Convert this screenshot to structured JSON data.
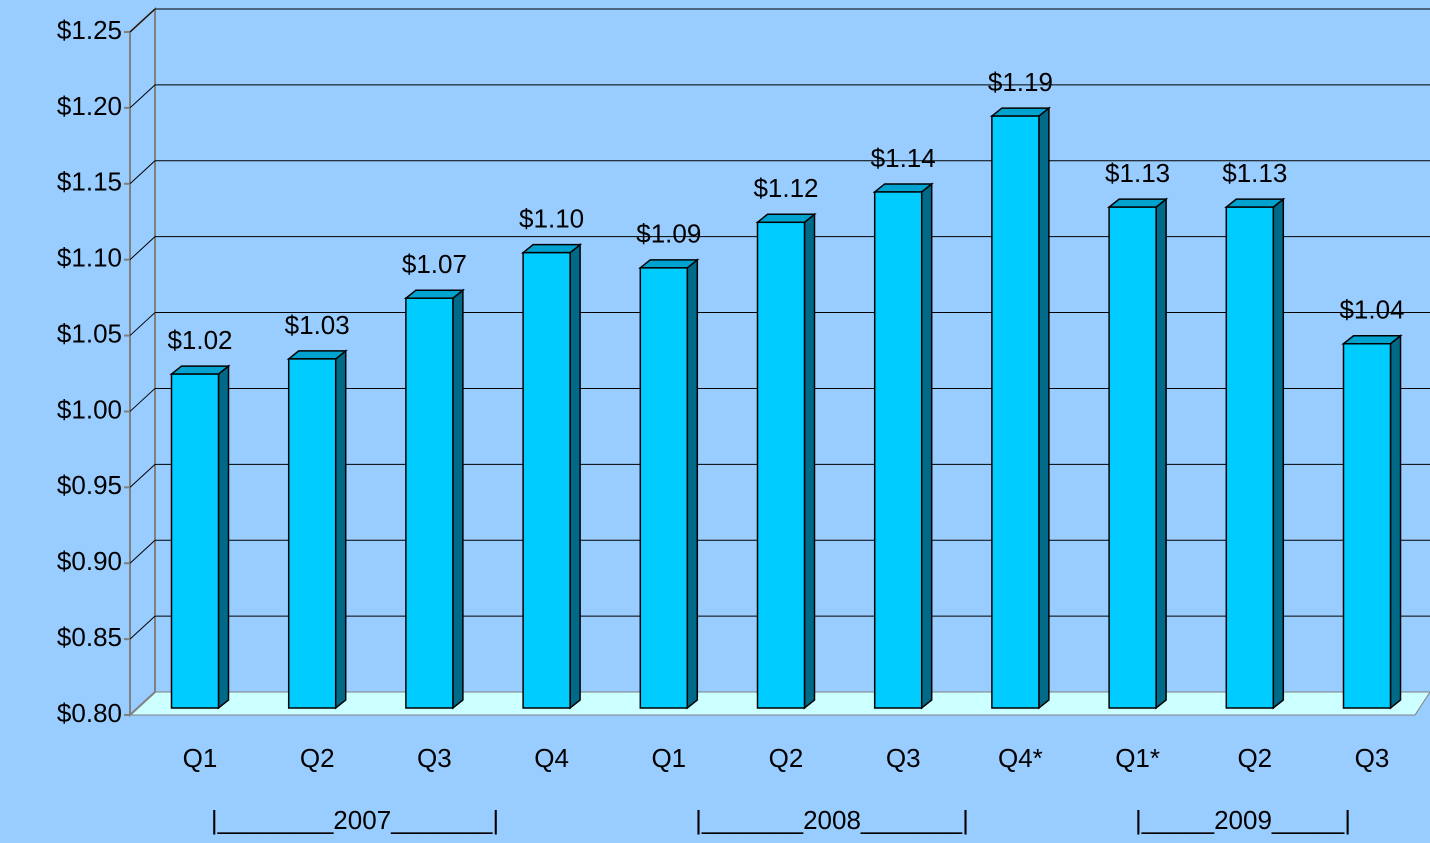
{
  "chart_data": {
    "type": "bar3d",
    "categories": [
      "Q1",
      "Q2",
      "Q3",
      "Q4",
      "Q1",
      "Q2",
      "Q3",
      "Q4*",
      "Q1*",
      "Q2",
      "Q3"
    ],
    "values": [
      1.02,
      1.03,
      1.07,
      1.1,
      1.09,
      1.12,
      1.14,
      1.19,
      1.13,
      1.13,
      1.04
    ],
    "value_labels": [
      "$1.02",
      "$1.03",
      "$1.07",
      "$1.10",
      "$1.09",
      "$1.12",
      "$1.14",
      "$1.19",
      "$1.13",
      "$1.13",
      "$1.04"
    ],
    "group_labels": [
      "|________2007_______|",
      "|_______2008_______|",
      "|_____2009_____|"
    ],
    "color": "#00ccff",
    "ylim": [
      0.8,
      1.25
    ],
    "yticks": [
      {
        "value": 0.8,
        "label": "$0.80"
      },
      {
        "value": 0.85,
        "label": "$0.85"
      },
      {
        "value": 0.9,
        "label": "$0.90"
      },
      {
        "value": 0.95,
        "label": "$0.95"
      },
      {
        "value": 1.0,
        "label": "$1.00"
      },
      {
        "value": 1.05,
        "label": "$1.05"
      },
      {
        "value": 1.1,
        "label": "$1.10"
      },
      {
        "value": 1.15,
        "label": "$1.15"
      },
      {
        "value": 1.2,
        "label": "$1.20"
      },
      {
        "value": 1.25,
        "label": "$1.25"
      }
    ],
    "grid": true
  }
}
